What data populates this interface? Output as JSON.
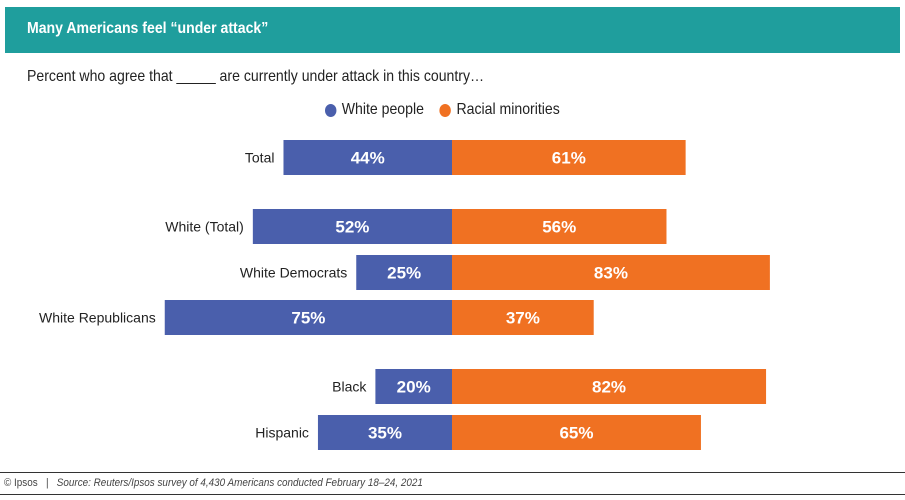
{
  "header": {
    "title": "Many Americans feel “under attack”"
  },
  "subtitle": "Percent who agree that _____ are currently under attack in this country…",
  "footer": {
    "copyright": "© Ipsos",
    "separator": "|",
    "source": "Source: Reuters/Ipsos survey of 4,430 Americans conducted February 18–24, 2021"
  },
  "colors": {
    "header": "#1f9e9d",
    "white_people": "#4a5fac",
    "racial_minorities": "#f07122"
  },
  "chart_data": {
    "type": "bar",
    "orientation": "horizontal-diverging",
    "categories": [
      "Total",
      "White (Total)",
      "White Democrats",
      "White Republicans",
      "Black",
      "Hispanic"
    ],
    "series": [
      {
        "name": "White people",
        "values": [
          44,
          52,
          25,
          75,
          20,
          35
        ],
        "labels": [
          "44%",
          "52%",
          "25%",
          "75%",
          "20%",
          "35%"
        ]
      },
      {
        "name": "Racial minorities",
        "values": [
          61,
          56,
          83,
          37,
          82,
          65
        ],
        "labels": [
          "61%",
          "56%",
          "83%",
          "37%",
          "82%",
          "65%"
        ]
      }
    ],
    "legend": "top-right",
    "grid": false
  }
}
